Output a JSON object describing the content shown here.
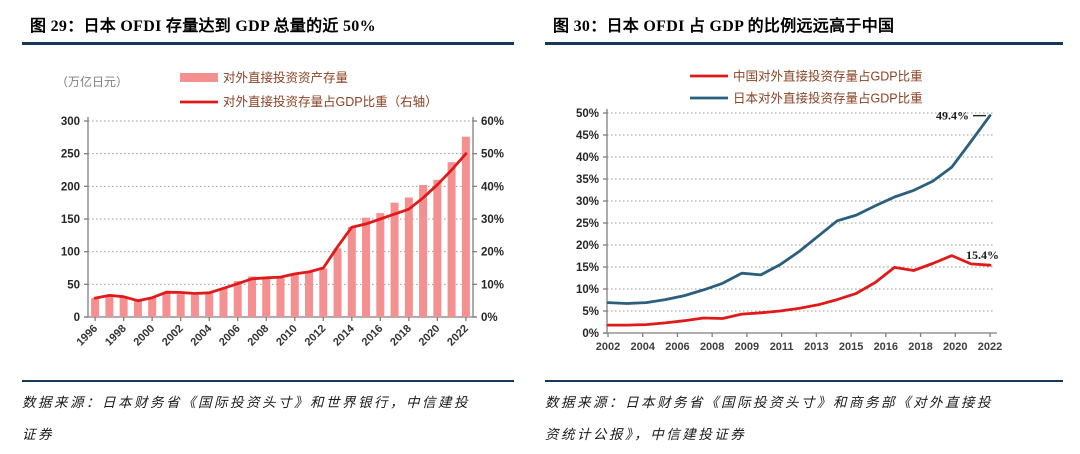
{
  "page": {
    "accent_rule_color": "#17375D",
    "background": "#ffffff"
  },
  "left_panel": {
    "title": "图 29：日本 OFDI 存量达到 GDP 总量的近 50%",
    "source": "数据来源：日本财务省《国际投资头寸》和世界银行，中信建投证券"
  },
  "right_panel": {
    "title": "图 30：日本 OFDI 占 GDP 的比例远远高于中国",
    "source": "数据来源：日本财务省《国际投资头寸》和商务部《对外直接投资统计公报》，中信建投证券"
  },
  "chart_data": [
    {
      "id": "japan-ofdi-stock-vs-gdp-share",
      "type": "bar",
      "unit_label": "（万亿日元）",
      "categories": [
        1996,
        1997,
        1998,
        1999,
        2000,
        2001,
        2002,
        2003,
        2004,
        2005,
        2006,
        2007,
        2008,
        2009,
        2010,
        2011,
        2012,
        2013,
        2014,
        2015,
        2016,
        2017,
        2018,
        2019,
        2020,
        2021,
        2022
      ],
      "x_tick_labels": [
        "1996",
        "1998",
        "2000",
        "2002",
        "2004",
        "2006",
        "2008",
        "2010",
        "2012",
        "2014",
        "2016",
        "2018",
        "2020",
        "2022"
      ],
      "series": [
        {
          "name": "对外直接投资资产存量",
          "type": "bar",
          "axis": "left",
          "color": "#F49090",
          "values": [
            29,
            33,
            31,
            25,
            30,
            37,
            35,
            34,
            36,
            44,
            55,
            62,
            61,
            60,
            65,
            68,
            74,
            105,
            138,
            152,
            159,
            175,
            183,
            202,
            210,
            237,
            276
          ]
        },
        {
          "name": "对外直接投资存量占GDP比重（右轴）",
          "type": "line",
          "axis": "right",
          "color": "#E01A1A",
          "values": [
            5.8,
            6.6,
            6.2,
            5.0,
            5.9,
            7.6,
            7.5,
            7.2,
            7.4,
            8.8,
            10.2,
            11.7,
            12.0,
            12.2,
            13.2,
            13.8,
            15.0,
            21.5,
            27.5,
            28.5,
            30.0,
            31.5,
            33.0,
            36.5,
            40.5,
            45.0,
            50.0
          ]
        }
      ],
      "left_axis": {
        "min": 0,
        "max": 300,
        "step": 50,
        "labels": [
          "0",
          "50",
          "100",
          "150",
          "200",
          "250",
          "300"
        ]
      },
      "right_axis": {
        "min": 0,
        "max": 60,
        "step": 10,
        "labels": [
          "0%",
          "10%",
          "20%",
          "30%",
          "40%",
          "50%",
          "60%"
        ]
      },
      "grid": true,
      "legend_position": "top",
      "legend_text_color": "#8A4123"
    },
    {
      "id": "china-vs-japan-ofdi-gdp-share",
      "type": "line",
      "categories": [
        2002,
        2003,
        2004,
        2005,
        2006,
        2007,
        2008,
        2009,
        2010,
        2011,
        2012,
        2013,
        2014,
        2015,
        2016,
        2017,
        2018,
        2019,
        2020,
        2021,
        2022
      ],
      "x_tick_labels": [
        "2002",
        "2004",
        "2006",
        "2008",
        "2009",
        "2011",
        "2013",
        "2015",
        "2016",
        "2018",
        "2020",
        "2022"
      ],
      "series": [
        {
          "name": "中国对外直接投资存量占GDP比重",
          "type": "line",
          "color": "#E01A1A",
          "values": [
            1.8,
            1.8,
            1.9,
            2.3,
            2.8,
            3.4,
            3.3,
            4.3,
            4.6,
            5.0,
            5.6,
            6.4,
            7.6,
            9.0,
            11.5,
            14.9,
            14.2,
            15.8,
            17.6,
            15.7,
            15.4
          ]
        },
        {
          "name": "日本对外直接投资存量占GDP比重",
          "type": "line",
          "color": "#2A5F7E",
          "values": [
            6.9,
            6.7,
            6.9,
            7.6,
            8.5,
            9.8,
            11.3,
            13.6,
            13.2,
            15.5,
            18.5,
            22.0,
            25.5,
            26.8,
            28.9,
            30.9,
            32.4,
            34.5,
            37.7,
            43.5,
            49.4
          ]
        }
      ],
      "y_axis": {
        "min": 0,
        "max": 50,
        "step": 5,
        "labels": [
          "0%",
          "5%",
          "10%",
          "15%",
          "20%",
          "25%",
          "30%",
          "35%",
          "40%",
          "45%",
          "50%"
        ]
      },
      "grid": true,
      "legend_position": "top",
      "legend_text_color": "#8A4123",
      "annotations": [
        {
          "text": "49.4%",
          "series": "日本对外直接投资存量占GDP比重",
          "at": "end"
        },
        {
          "text": "15.4%",
          "series": "中国对外直接投资存量占GDP比重",
          "at": "end"
        }
      ]
    }
  ]
}
